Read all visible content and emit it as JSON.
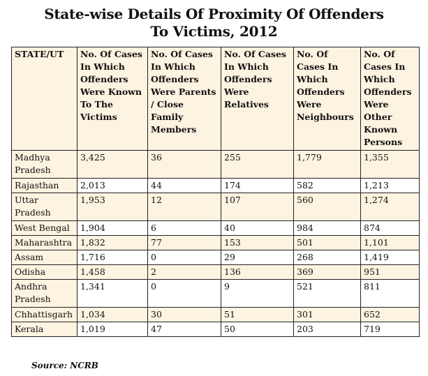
{
  "title_line1": "State-wise Details Of Proximity Of Offenders",
  "title_line2": "To Victims, 2012",
  "chart_data": {
    "type": "table",
    "headers": [
      "STATE/UT",
      "No. Of Cases In Which Offenders Were Known To The Victims",
      "No. Of Cases In Which Offenders Were Parents / Close Family Members",
      "No. Of Cases In Which Offenders Were Relatives",
      "No. Of Cases In Which Offenders Were Neighbours",
      "No. Of Cases In Which Offenders Were Other Known Persons"
    ],
    "rows": [
      [
        "Madhya Pradesh",
        "3,425",
        "36",
        "255",
        "1,779",
        "1,355"
      ],
      [
        "Rajasthan",
        "2,013",
        "44",
        "174",
        "582",
        "1,213"
      ],
      [
        "Uttar Pradesh",
        "1,953",
        "12",
        "107",
        "560",
        "1,274"
      ],
      [
        "West Bengal",
        "1,904",
        "6",
        "40",
        "984",
        "874"
      ],
      [
        "Maharashtra",
        "1,832",
        "77",
        "153",
        "501",
        "1,101"
      ],
      [
        "Assam",
        "1,716",
        "0",
        "29",
        "268",
        "1,419"
      ],
      [
        "Odisha",
        "1,458",
        "2",
        "136",
        "369",
        "951"
      ],
      [
        "Andhra Pradesh",
        "1,341",
        "0",
        "9",
        "521",
        "811"
      ],
      [
        "Chhattisgarh",
        "1,034",
        "30",
        "51",
        "301",
        "652"
      ],
      [
        "Kerala",
        "1,019",
        "47",
        "50",
        "203",
        "719"
      ]
    ]
  },
  "source": "Source: NCRB",
  "colors": {
    "tint": "#fdf3e1",
    "border": "#222222"
  }
}
